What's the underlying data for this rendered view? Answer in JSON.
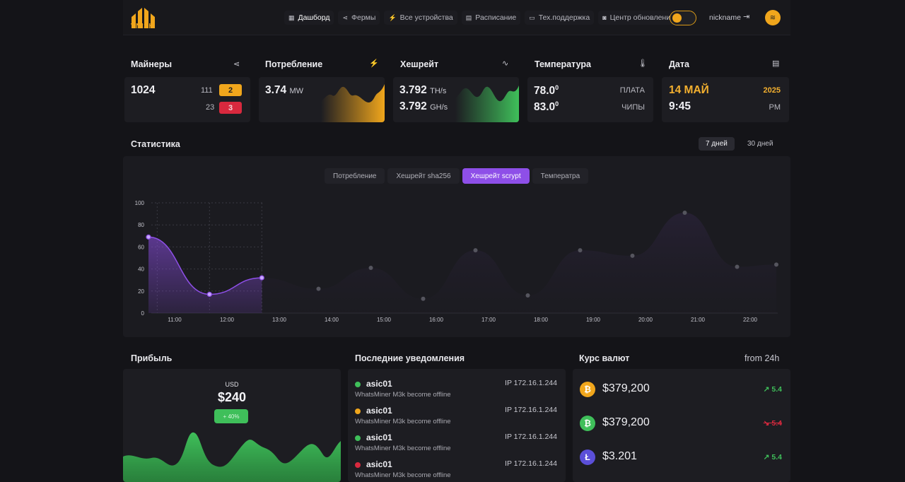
{
  "header": {
    "logo_text": "VNISH",
    "nav": [
      {
        "label": "Дашборд",
        "icon": "grid-icon",
        "active": true
      },
      {
        "label": "Фермы",
        "icon": "share-icon",
        "active": false
      },
      {
        "label": "Все устройства",
        "icon": "bolt-icon",
        "active": false
      },
      {
        "label": "Расписание",
        "icon": "calendar-icon",
        "active": false
      },
      {
        "label": "Тех.поддержка",
        "icon": "chat-icon",
        "active": false
      },
      {
        "label": "Центр обновлений",
        "icon": "update-icon",
        "active": false
      }
    ],
    "nickname": "nickname",
    "accent": "#f0a61c"
  },
  "cards": {
    "miners": {
      "title": "Майнеры",
      "total": "1024",
      "warn_count": "111",
      "warn_badge": "2",
      "err_count": "23",
      "err_badge": "3"
    },
    "power": {
      "title": "Потребление",
      "value": "3.74",
      "unit": "MW"
    },
    "hashrate": {
      "title": "Хешрейт",
      "value1": "3.792",
      "unit1": "TH/s",
      "value2": "3.792",
      "unit2": "GH/s"
    },
    "temperature": {
      "title": "Температура",
      "board": "78.0",
      "board_label": "ПЛАТА",
      "chips": "83.0",
      "chips_label": "ЧИПЫ",
      "deg": "0"
    },
    "date": {
      "title": "Дата",
      "day": "14 МАЙ",
      "year": "2025",
      "time": "9:45",
      "ampm": "PM"
    }
  },
  "statistics": {
    "title": "Статистика",
    "ranges": [
      {
        "label": "7 дней",
        "active": true
      },
      {
        "label": "30 дней",
        "active": false
      }
    ],
    "tabs": [
      {
        "label": "Потребление",
        "active": false
      },
      {
        "label": "Хешрейт sha256",
        "active": false
      },
      {
        "label": "Хешрейт scrypt",
        "active": true
      },
      {
        "label": "Температра",
        "active": false
      }
    ]
  },
  "chart_data": {
    "type": "area",
    "x": [
      "10:30",
      "11:40",
      "12:40",
      "13:45",
      "14:45",
      "15:45",
      "16:45",
      "17:45",
      "18:45",
      "19:45",
      "20:45",
      "21:45",
      "22:30"
    ],
    "x_ticks": [
      "11:00",
      "12:00",
      "13:00",
      "14:00",
      "15:00",
      "16:00",
      "17:00",
      "18:00",
      "19:00",
      "20:00",
      "21:00",
      "22:00"
    ],
    "values": [
      69,
      17,
      32,
      22,
      41,
      13,
      57,
      16,
      57,
      52,
      91,
      42,
      44
    ],
    "ylim": [
      0,
      100
    ],
    "y_ticks": [
      0,
      20,
      40,
      60,
      80,
      100
    ],
    "color": "#8e4fe8"
  },
  "profit": {
    "title": "Прибыль",
    "currency": "USD",
    "amount": "$240",
    "button": "+ 40%"
  },
  "notifications": {
    "title": "Последние уведомления",
    "items": [
      {
        "name": "asic01",
        "msg": "WhatsMiner M3k become offline",
        "ip": "IP 172.16.1.244",
        "color": "#3fbf5a"
      },
      {
        "name": "asic01",
        "msg": "WhatsMiner M3k become offline",
        "ip": "IP 172.16.1.244",
        "color": "#f0a61c"
      },
      {
        "name": "asic01",
        "msg": "WhatsMiner M3k become offline",
        "ip": "IP 172.16.1.244",
        "color": "#3fbf5a"
      },
      {
        "name": "asic01",
        "msg": "WhatsMiner M3k become offline",
        "ip": "IP 172.16.1.244",
        "color": "#d8293e"
      }
    ]
  },
  "currency": {
    "title": "Курс валют",
    "period": "from 24h",
    "items": [
      {
        "coin": "bitcoin-icon",
        "symbol": "₿",
        "bg": "#f0a61c",
        "price": "$379,200",
        "change": "5.4",
        "dir": "up"
      },
      {
        "coin": "bitcoin-cash-icon",
        "symbol": "₿",
        "bg": "#3fbf5a",
        "price": "$379,200",
        "change": "5.4",
        "dir": "down"
      },
      {
        "coin": "litecoin-icon",
        "symbol": "Ł",
        "bg": "#5b4fd8",
        "price": "$3.201",
        "change": "5.4",
        "dir": "up"
      }
    ]
  }
}
